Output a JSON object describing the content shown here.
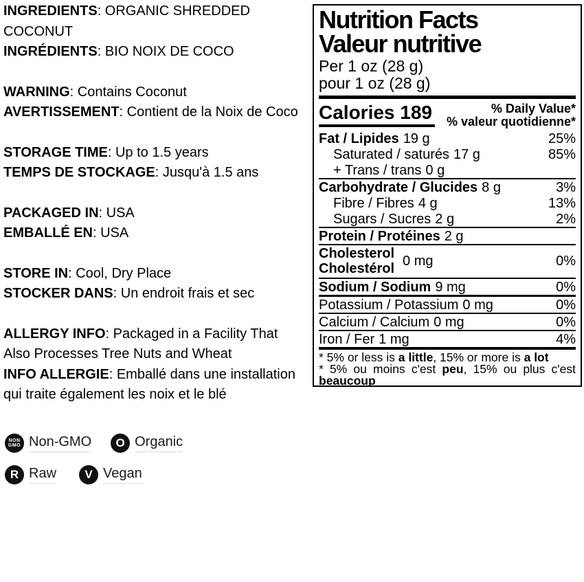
{
  "left": {
    "sections": [
      {
        "name": "ingredients",
        "lines": [
          {
            "b": "INGREDIENTS",
            "r": ": ORGANIC SHREDDED"
          },
          {
            "b": "",
            "r": "COCONUT"
          },
          {
            "b": "INGRÉDIENTS",
            "r": ": BIO NOIX DE COCO"
          }
        ]
      },
      {
        "name": "warning",
        "lines": [
          {
            "b": "WARNING",
            "r": ": Contains Coconut"
          },
          {
            "b": "AVERTISSEMENT",
            "r": ": Contient de la Noix de Coco"
          }
        ]
      },
      {
        "name": "storage-time",
        "lines": [
          {
            "b": "STORAGE TIME",
            "r": ": Up to 1.5 years"
          },
          {
            "b": "TEMPS DE STOCKAGE",
            "r": ": Jusqu'à 1.5 ans"
          }
        ]
      },
      {
        "name": "packaged-in",
        "lines": [
          {
            "b": "PACKAGED IN",
            "r": ": USA"
          },
          {
            "b": "EMBALLÉ EN",
            "r": ": USA"
          }
        ]
      },
      {
        "name": "store-in",
        "lines": [
          {
            "b": "STORE IN",
            "r": ": Cool, Dry Place"
          },
          {
            "b": "STOCKER DANS",
            "r": ": Un endroit frais et sec"
          }
        ]
      },
      {
        "name": "allergy-info",
        "lines": [
          {
            "b": "ALLERGY INFO",
            "r": ": Packaged in a Facility That"
          },
          {
            "b": "",
            "r": "Also Processes Tree Nuts and Wheat"
          },
          {
            "b": "INFO ALLERGIE",
            "r": ": Emballé dans une installation"
          },
          {
            "b": "",
            "r": "qui traite également les noix et le blé"
          }
        ]
      }
    ]
  },
  "badges": {
    "nongmo": {
      "line1": "NON",
      "line2": "GMO",
      "label": "Non-GMO"
    },
    "organic": {
      "glyph": "O",
      "label": "Organic"
    },
    "raw": {
      "glyph": "R",
      "label": "Raw"
    },
    "vegan": {
      "glyph": "V",
      "label": "Vegan"
    }
  },
  "nutrition": {
    "title_en": "Nutrition Facts",
    "title_fr": "Valeur nutritive",
    "serving_en": "Per 1 oz (28 g)",
    "serving_fr": "pour 1 oz (28 g)",
    "calories_label": "Calories",
    "calories_value": "189",
    "dv_header_en": "% Daily Value*",
    "dv_header_fr": "% valeur quotidienne*",
    "rows": [
      {
        "label": "Fat / Lipides",
        "amount": "19 g",
        "dv": "25%"
      },
      {
        "label": "Saturated / saturés",
        "amount": "17 g",
        "dv": "85%"
      },
      {
        "label": "+ Trans / trans",
        "amount": "0 g",
        "dv": ""
      },
      {
        "label": "Carbohydrate / Glucides",
        "amount": "8 g",
        "dv": "3%"
      },
      {
        "label": "Fibre / Fibres",
        "amount": "4 g",
        "dv": "13%"
      },
      {
        "label": "Sugars / Sucres",
        "amount": "2 g",
        "dv": "2%"
      },
      {
        "label": "Protein / Protéines",
        "amount": "2 g",
        "dv": ""
      },
      {
        "label_en": "Cholesterol",
        "label_fr": "Cholestérol",
        "amount": "0 mg",
        "dv": "0%"
      },
      {
        "label": "Sodium / Sodium",
        "amount": "9 mg",
        "dv": "0%"
      },
      {
        "label": "Potassium / Potassium",
        "amount": "0 mg",
        "dv": "0%"
      },
      {
        "label": "Calcium / Calcium",
        "amount": "0 mg",
        "dv": "0%"
      },
      {
        "label": "Iron / Fer",
        "amount": "1 mg",
        "dv": "4%"
      }
    ],
    "footnote": {
      "en1": "* 5% or less is ",
      "en_bold1": "a little",
      "en2": ", 15% or more is ",
      "en_bold2": "a lot",
      "fr1": "* 5% ou moins c'est ",
      "fr_bold1": "peu",
      "fr2": ", 15% ou plus c'est ",
      "fr_bold2": "beaucoup"
    }
  },
  "colors": {
    "text": "#000000",
    "panel_border": "#000000",
    "badge_background": "#111111",
    "badge_label_underline": "#dcdcdc"
  }
}
